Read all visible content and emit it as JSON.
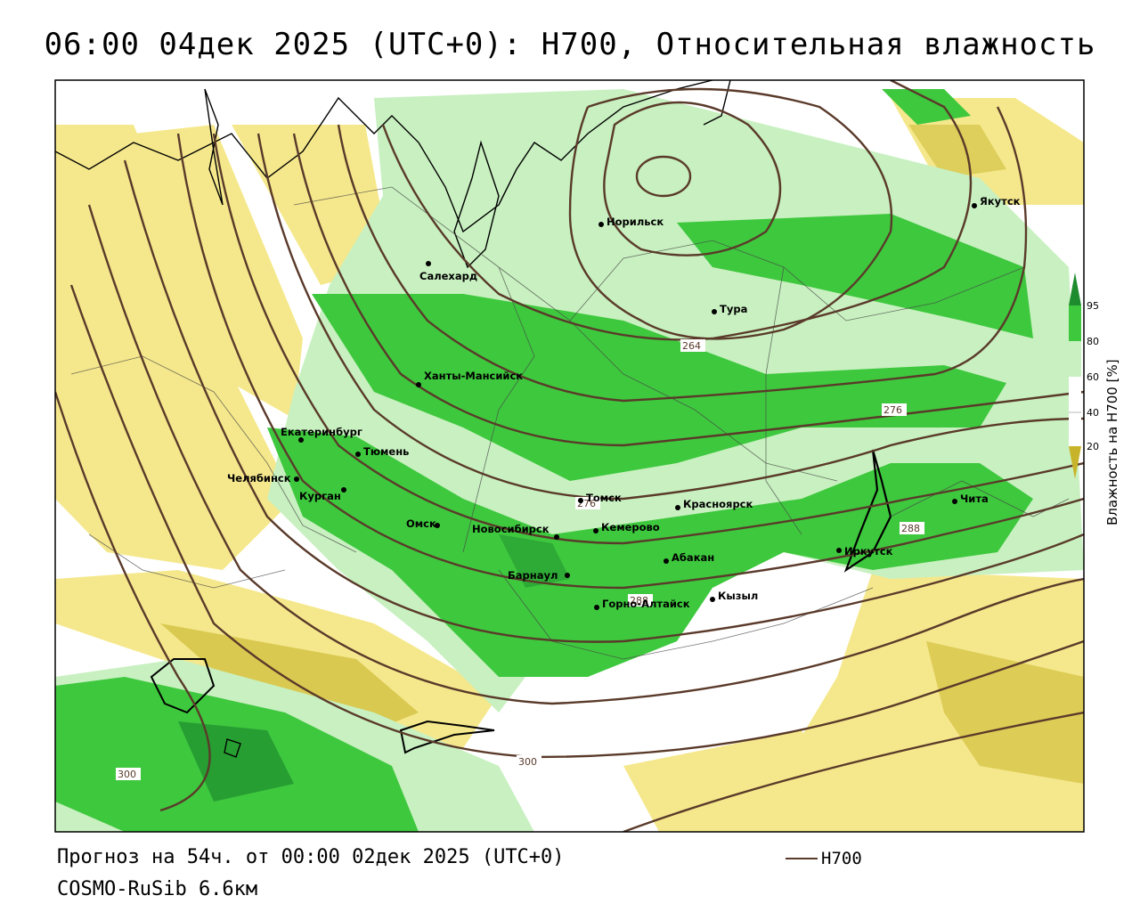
{
  "title": "06:00 04дек 2025 (UTC+0): H700, Относительная влажность",
  "footer": {
    "forecast": "Прогноз на 54ч. от 00:00 02дек 2025 (UTC+0)",
    "model": "COSMO-RuSib 6.6км"
  },
  "legend": {
    "line_label": "H700",
    "line_color": "#5a3a2a"
  },
  "colorbar": {
    "title": "Влажность на H700 [%]",
    "ticks": [
      "95",
      "80",
      "60",
      "40",
      "20"
    ],
    "colors": {
      "very_dry": "#c8b42a",
      "dry": "#f5e88c",
      "neutral": "#ffffff",
      "moist": "#c8f0c0",
      "wet": "#3ec83e",
      "very_wet": "#1e8c2e"
    }
  },
  "contour_labels": [
    "264",
    "276",
    "288",
    "288",
    "300",
    "300",
    "276"
  ],
  "cities": [
    {
      "name": "Салехард"
    },
    {
      "name": "Норильск"
    },
    {
      "name": "Якутск"
    },
    {
      "name": "Тура"
    },
    {
      "name": "Ханты-Мансийск"
    },
    {
      "name": "Екатеринбург"
    },
    {
      "name": "Тюмень"
    },
    {
      "name": "Челябинск"
    },
    {
      "name": "Курган"
    },
    {
      "name": "Омск"
    },
    {
      "name": "Томск"
    },
    {
      "name": "Новосибирск"
    },
    {
      "name": "Кемерово"
    },
    {
      "name": "Красноярск"
    },
    {
      "name": "Абакан"
    },
    {
      "name": "Барнаул"
    },
    {
      "name": "Горно-Алтайск"
    },
    {
      "name": "Кызыл"
    },
    {
      "name": "Иркутск"
    },
    {
      "name": "Чита"
    }
  ]
}
